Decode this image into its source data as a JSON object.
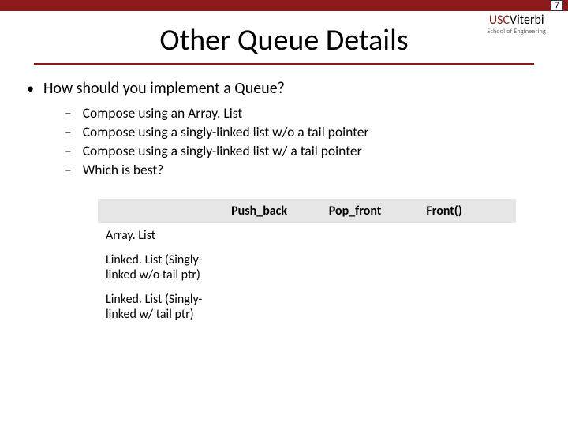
{
  "page_number": "7",
  "logo": {
    "usc": "USC",
    "viterbi": "Viterbi",
    "subtitle": "School of Engineering"
  },
  "title": "Other Queue Details",
  "main_question": "How should you implement a Queue?",
  "sub_items": [
    "Compose using an Array. List",
    "Compose using a singly-linked list w/o a tail pointer",
    "Compose using a singly-linked list w/ a tail pointer",
    "Which is best?"
  ],
  "table": {
    "headers": [
      "",
      "Push_back",
      "Pop_front",
      "Front()"
    ],
    "rows": [
      [
        "Array. List",
        "",
        "",
        ""
      ],
      [
        "Linked. List (Singly-linked w/o tail ptr)",
        "",
        "",
        ""
      ],
      [
        "Linked. List (Singly-linked w/ tail ptr)",
        "",
        "",
        ""
      ]
    ]
  },
  "colors": {
    "accent": "#8b1a1a",
    "header_bg": "#e6e6e6"
  }
}
